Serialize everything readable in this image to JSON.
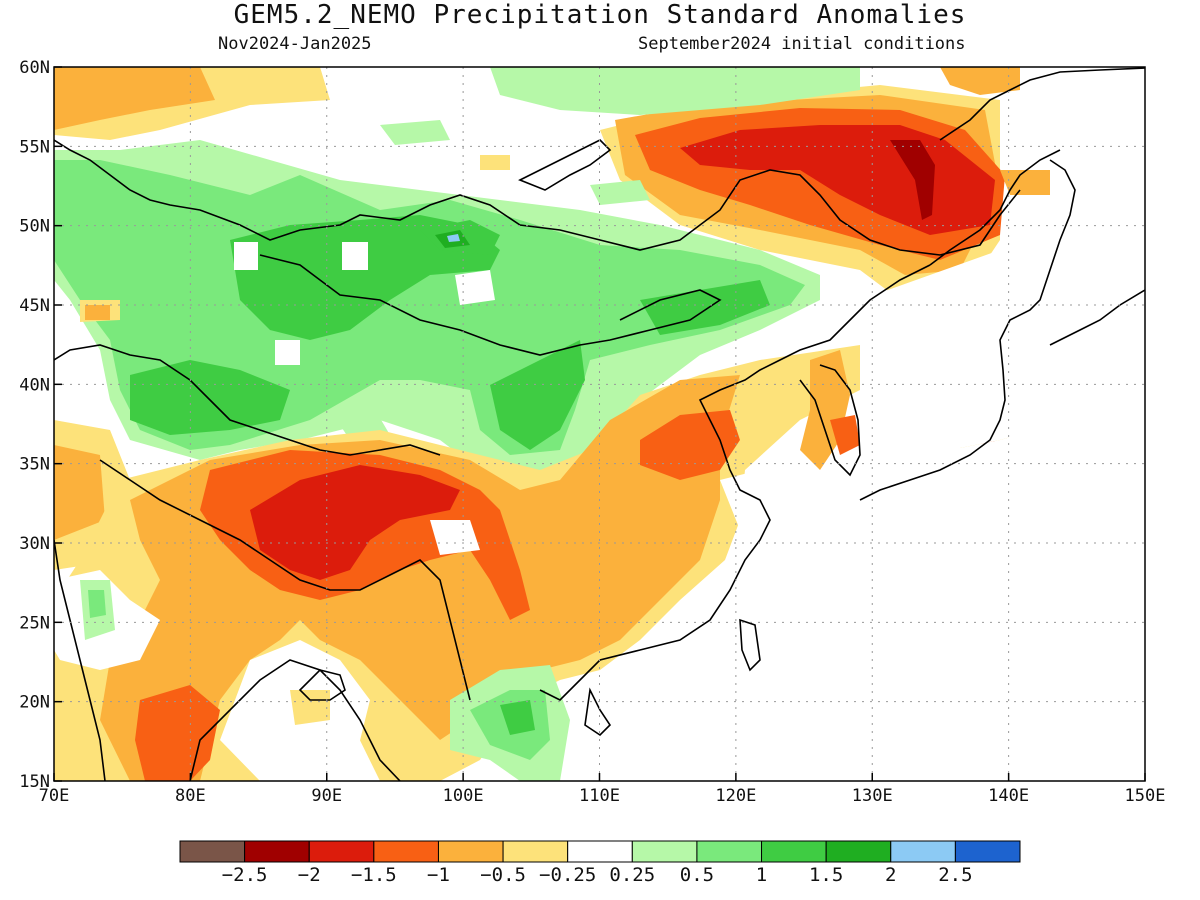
{
  "header": {
    "title": "GEM5.2_NEMO Precipitation Standard Anomalies",
    "period": "Nov2024-Jan2025",
    "init": "September2024 initial conditions"
  },
  "map": {
    "lon_range": [
      70,
      150
    ],
    "lat_range": [
      15,
      60
    ],
    "lon_ticks": [
      "70E",
      "80E",
      "90E",
      "100E",
      "110E",
      "120E",
      "130E",
      "140E",
      "150E"
    ],
    "lat_ticks": [
      "60N",
      "55N",
      "50N",
      "45N",
      "40N",
      "35N",
      "30N",
      "25N",
      "20N",
      "15N"
    ],
    "grid": true
  },
  "colorbar": {
    "colors": [
      "#7a5548",
      "#a00000",
      "#dc1c0c",
      "#f86014",
      "#fbb13c",
      "#fde27a",
      "#ffffff",
      "#b6f8a8",
      "#7ae97c",
      "#3fcc43",
      "#1fae21",
      "#8ccaf4",
      "#1d63cf"
    ],
    "labels": [
      "−2.5",
      "−2",
      "−1.5",
      "−1",
      "−0.5",
      "−0.25",
      "0.25",
      "0.5",
      "1",
      "1.5",
      "2",
      "2.5"
    ]
  },
  "anomaly_regions": [
    {
      "name": "siberia-amur-dry",
      "level": -1.5,
      "lon": [
        122,
        140
      ],
      "lat": [
        49,
        56
      ]
    },
    {
      "name": "siberia-core-dry",
      "level": -2,
      "lon": [
        132,
        137
      ],
      "lat": [
        49,
        55
      ]
    },
    {
      "name": "tibet-dry",
      "level": -1.5,
      "lon": [
        87,
        98
      ],
      "lat": [
        27,
        34
      ]
    },
    {
      "name": "tibet-core-dry",
      "level": -2,
      "lon": [
        91,
        96
      ],
      "lat": [
        31,
        33
      ]
    },
    {
      "name": "north-china-dry",
      "level": -1,
      "lon": [
        116,
        122
      ],
      "lat": [
        33,
        38
      ]
    },
    {
      "name": "india-dry",
      "level": -1,
      "lon": [
        76,
        82
      ],
      "lat": [
        15,
        21
      ]
    },
    {
      "name": "mongolia-wet",
      "level": 1,
      "lon": [
        78,
        118
      ],
      "lat": [
        38,
        50
      ]
    },
    {
      "name": "mongolia-core-wet",
      "level": 1.5,
      "lon": [
        85,
        100
      ],
      "lat": [
        42,
        50
      ]
    },
    {
      "name": "gobi-wet",
      "level": 1,
      "lon": [
        104,
        110
      ],
      "lat": [
        36,
        42
      ]
    },
    {
      "name": "indochina-wet",
      "level": 0.5,
      "lon": [
        101,
        106
      ],
      "lat": [
        16,
        21
      ]
    }
  ]
}
